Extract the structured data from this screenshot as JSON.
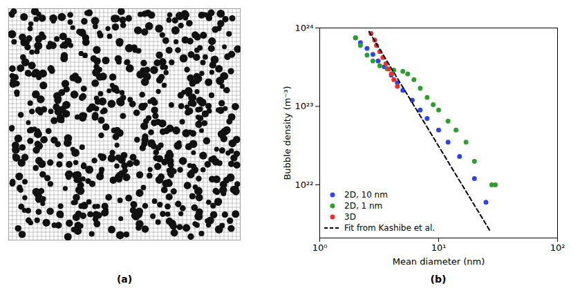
{
  "chart_data": [
    {
      "type": "image",
      "label": "(a)"
    },
    {
      "type": "scatter",
      "label": "(b)",
      "x_label": "Mean diameter (nm)",
      "y_label": "Bubble density (m⁻³)",
      "log": true,
      "grid": false,
      "legend": "lower left",
      "xlim": [
        1,
        100
      ],
      "xticks": [
        {
          "value": 1,
          "label": "10⁰"
        },
        {
          "value": 10,
          "label": "10¹"
        },
        {
          "value": 100,
          "label": "10²"
        }
      ],
      "ylim": [
        2.1e+21,
        1e+24
      ],
      "yticks": [
        {
          "value": 1e+22,
          "label": "10²²"
        },
        {
          "value": 1e+23,
          "label": "10²³"
        },
        {
          "value": 1e+24,
          "label": "10²⁴"
        }
      ],
      "series": [
        {
          "name": "2D, 10 nm",
          "color": "#2b45e8",
          "marker": "circle",
          "x": [
            2.0,
            2.2,
            2.5,
            2.8,
            3.1,
            3.5,
            4.0,
            4.5,
            5.0,
            6.0,
            7.0,
            8.0,
            10,
            12,
            15,
            20,
            25
          ],
          "values": [
            7.5e+23,
            6.5e+23,
            5.5e+23,
            4.6e+23,
            3.8e+23,
            3.2e+23,
            2.5e+23,
            2e+23,
            1.6e+23,
            1.2e+23,
            9e+22,
            7e+22,
            5e+22,
            3.5e+22,
            2.3e+22,
            1.2e+22,
            6e+21
          ]
        },
        {
          "name": "2D, 1 nm",
          "color": "#2e9e2e",
          "marker": "circle",
          "x": [
            2.0,
            2.2,
            2.5,
            2.8,
            3.2,
            3.7,
            4.2,
            5.0,
            5.5,
            6.2,
            7.0,
            8.0,
            9.0,
            10,
            12,
            14,
            17,
            20,
            28,
            30
          ],
          "values": [
            7.5e+23,
            6e+23,
            4.5e+23,
            3.8e+23,
            3.3e+23,
            3e+23,
            2.9e+23,
            2.8e+23,
            2.6e+23,
            2.2e+23,
            1.7e+23,
            1.3e+23,
            1.05e+23,
            9e+22,
            6.5e+22,
            5e+22,
            3.5e+22,
            2e+22,
            1e+22,
            1e+22
          ]
        },
        {
          "name": "3D",
          "color": "#e8302a",
          "marker": "circle",
          "x": [
            2.7,
            2.9,
            3.0,
            3.2,
            3.4,
            3.6,
            3.8,
            4.0,
            4.2,
            4.5
          ],
          "values": [
            8.5e+23,
            7e+23,
            6e+23,
            5e+23,
            4.2e+23,
            3.5e+23,
            3e+23,
            2.6e+23,
            2.2e+23,
            1.8e+23
          ]
        },
        {
          "name": "Fit from Kashibe et al.",
          "color": "#000000",
          "type": "line",
          "line_style": "dashed",
          "x": [
            2.6,
            27
          ],
          "values": [
            9e+23,
            2.6e+21
          ]
        }
      ]
    }
  ]
}
